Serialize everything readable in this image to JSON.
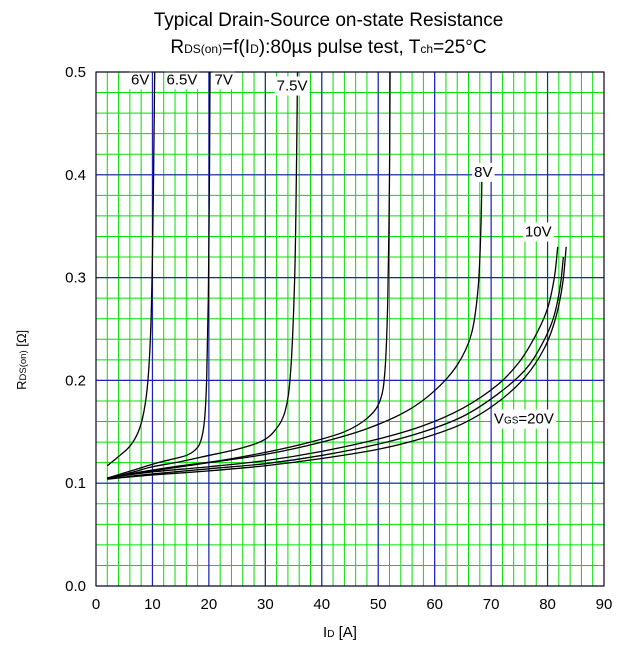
{
  "title": {
    "line1": "Typical Drain-Source on-state Resistance",
    "line2_prefix": "R",
    "line2_sub1": "DS(on)",
    "line2_mid": "=f(I",
    "line2_sub2": "D",
    "line2_rest": "):80µs pulse test, T",
    "line2_sub3": "ch",
    "line2_end": "=25°C"
  },
  "colors": {
    "minor_grid": "#00e000",
    "major_grid": "#2020c0",
    "curve": "#000000",
    "label_bg": "#ffffff"
  },
  "chart_data": {
    "type": "line",
    "xlabel": {
      "main": "I",
      "sub": "D",
      "unit": " [A]"
    },
    "ylabel": {
      "main": "R",
      "sub": "DS(on)",
      "unit": " [Ω]"
    },
    "xlim": [
      0,
      90
    ],
    "ylim": [
      0.0,
      0.5
    ],
    "x_ticks": [
      "0",
      "10",
      "20",
      "30",
      "40",
      "50",
      "60",
      "70",
      "80",
      "90"
    ],
    "y_ticks": [
      "0.0",
      "0.1",
      "0.2",
      "0.3",
      "0.4",
      "0.5"
    ],
    "grid": true,
    "series": [
      {
        "name": "6V",
        "label_pos": [
          6.2,
          0.488
        ],
        "points": [
          [
            2,
            0.117
          ],
          [
            4,
            0.126
          ],
          [
            6,
            0.136
          ],
          [
            7.5,
            0.15
          ],
          [
            8.5,
            0.17
          ],
          [
            9.2,
            0.2
          ],
          [
            9.7,
            0.25
          ],
          [
            10.0,
            0.32
          ],
          [
            10.2,
            0.4
          ],
          [
            10.4,
            0.5
          ]
        ]
      },
      {
        "name": "6.5V",
        "label_pos": [
          12.5,
          0.488
        ],
        "points": [
          [
            2,
            0.105
          ],
          [
            5,
            0.11
          ],
          [
            8,
            0.115
          ],
          [
            11,
            0.12
          ],
          [
            14,
            0.124
          ],
          [
            16,
            0.127
          ],
          [
            17.5,
            0.132
          ],
          [
            18.5,
            0.14
          ],
          [
            19.2,
            0.16
          ],
          [
            19.6,
            0.2
          ],
          [
            19.9,
            0.28
          ],
          [
            20.1,
            0.4
          ],
          [
            20.2,
            0.5
          ]
        ]
      },
      {
        "name": "7V",
        "label_pos": [
          21,
          0.488
        ],
        "points": [
          [
            2,
            0.105
          ],
          [
            6,
            0.11
          ],
          [
            10,
            0.116
          ],
          [
            15,
            0.121
          ],
          [
            20,
            0.127
          ],
          [
            25,
            0.133
          ],
          [
            29,
            0.14
          ],
          [
            31.5,
            0.15
          ],
          [
            33.5,
            0.17
          ],
          [
            34.5,
            0.21
          ],
          [
            35.2,
            0.3
          ],
          [
            35.5,
            0.4
          ],
          [
            35.7,
            0.5
          ]
        ]
      },
      {
        "name": "7.5V",
        "label_pos": [
          32,
          0.482
        ],
        "points": [
          [
            2,
            0.105
          ],
          [
            8,
            0.111
          ],
          [
            15,
            0.117
          ],
          [
            22,
            0.122
          ],
          [
            30,
            0.13
          ],
          [
            38,
            0.14
          ],
          [
            44,
            0.15
          ],
          [
            48,
            0.163
          ],
          [
            50.3,
            0.18
          ],
          [
            51.2,
            0.21
          ],
          [
            51.7,
            0.28
          ],
          [
            52.0,
            0.4
          ],
          [
            52.1,
            0.5
          ]
        ]
      },
      {
        "name": "8V",
        "label_pos": [
          67,
          0.398
        ],
        "points": [
          [
            2,
            0.105
          ],
          [
            10,
            0.112
          ],
          [
            20,
            0.12
          ],
          [
            30,
            0.128
          ],
          [
            40,
            0.14
          ],
          [
            48,
            0.153
          ],
          [
            55,
            0.17
          ],
          [
            60,
            0.19
          ],
          [
            64,
            0.215
          ],
          [
            66.5,
            0.245
          ],
          [
            67.7,
            0.29
          ],
          [
            68.2,
            0.35
          ],
          [
            68.4,
            0.41
          ]
        ]
      },
      {
        "name": "10V",
        "label_pos": [
          76,
          0.34
        ],
        "points": [
          [
            2,
            0.105
          ],
          [
            10,
            0.111
          ],
          [
            20,
            0.116
          ],
          [
            30,
            0.122
          ],
          [
            40,
            0.131
          ],
          [
            50,
            0.143
          ],
          [
            58,
            0.156
          ],
          [
            65,
            0.173
          ],
          [
            71,
            0.195
          ],
          [
            75,
            0.218
          ],
          [
            78,
            0.245
          ],
          [
            80,
            0.27
          ],
          [
            81.2,
            0.3
          ],
          [
            81.8,
            0.33
          ]
        ]
      },
      {
        "name": "",
        "label_pos": null,
        "points": [
          [
            2,
            0.104
          ],
          [
            10,
            0.109
          ],
          [
            20,
            0.114
          ],
          [
            30,
            0.119
          ],
          [
            40,
            0.127
          ],
          [
            50,
            0.138
          ],
          [
            58,
            0.15
          ],
          [
            65,
            0.165
          ],
          [
            71,
            0.186
          ],
          [
            76,
            0.21
          ],
          [
            79,
            0.235
          ],
          [
            81,
            0.26
          ],
          [
            82.2,
            0.29
          ],
          [
            82.8,
            0.32
          ]
        ]
      },
      {
        "name": "VGS=20V",
        "label_main": "V",
        "label_sub": "GS",
        "label_rest": "=20V",
        "label_pos": [
          70.5,
          0.158
        ],
        "points": [
          [
            2,
            0.104
          ],
          [
            10,
            0.108
          ],
          [
            20,
            0.112
          ],
          [
            30,
            0.117
          ],
          [
            40,
            0.124
          ],
          [
            50,
            0.133
          ],
          [
            58,
            0.144
          ],
          [
            65,
            0.158
          ],
          [
            71,
            0.178
          ],
          [
            76,
            0.203
          ],
          [
            79.5,
            0.232
          ],
          [
            81.5,
            0.262
          ],
          [
            82.7,
            0.295
          ],
          [
            83.3,
            0.33
          ]
        ]
      }
    ]
  }
}
